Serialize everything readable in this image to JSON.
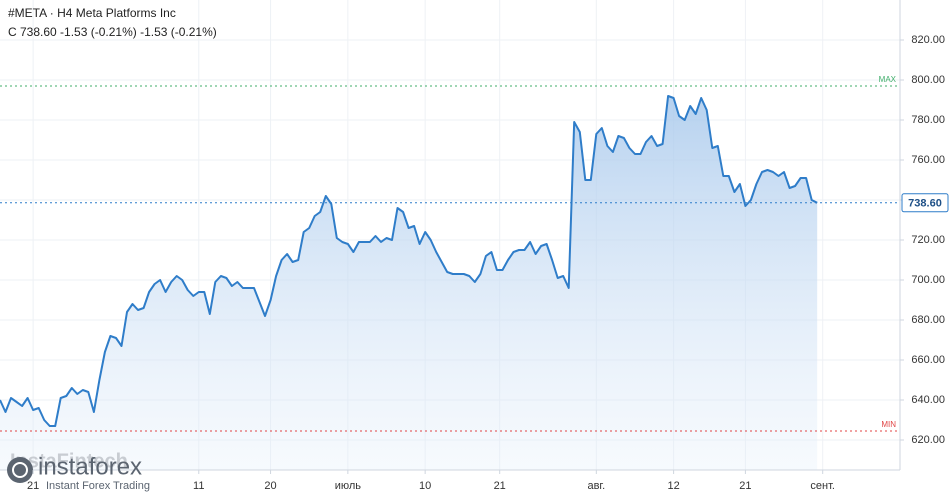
{
  "chart_data": {
    "type": "area",
    "title": "#META · H4 Meta Platforms Inc",
    "subtitle": "C 738.60 -1.53 (-0.21%) -1.53 (-0.21%)",
    "watermark": "InstaFintech",
    "brand": "instaforex",
    "brand_tagline": "Instant Forex Trading",
    "color": "#2f7dc9",
    "grid": true,
    "ylim": [
      605,
      840
    ],
    "yticks": [
      {
        "value": 620,
        "label": "620.00"
      },
      {
        "value": 640,
        "label": "640.00"
      },
      {
        "value": 660,
        "label": "660.00"
      },
      {
        "value": 680,
        "label": "680.00"
      },
      {
        "value": 700,
        "label": "700.00"
      },
      {
        "value": 720,
        "label": "720.00"
      },
      {
        "value": 740,
        "label": "740.00"
      },
      {
        "value": 760,
        "label": "760.00"
      },
      {
        "value": 780,
        "label": "780.00"
      },
      {
        "value": 800,
        "label": "800.00"
      },
      {
        "value": 820,
        "label": "820.00"
      }
    ],
    "xlim": [
      0,
      163
    ],
    "xticks": [
      {
        "value": 6,
        "label": "21"
      },
      {
        "value": 36,
        "label": "11"
      },
      {
        "value": 49,
        "label": "20"
      },
      {
        "value": 63,
        "label": "июль"
      },
      {
        "value": 77,
        "label": "10"
      },
      {
        "value": 90.5,
        "label": "21"
      },
      {
        "value": 108,
        "label": "авг."
      },
      {
        "value": 122,
        "label": "12"
      },
      {
        "value": 135,
        "label": "21"
      },
      {
        "value": 149,
        "label": "сент."
      }
    ],
    "max_line": {
      "value": 797,
      "label": "MAX"
    },
    "min_line": {
      "value": 624.5,
      "label": "MIN"
    },
    "last_price": {
      "value": 738.6,
      "label": "738.60"
    },
    "values": [
      640,
      634,
      641,
      639,
      637,
      641,
      635,
      636,
      630,
      627,
      627,
      641,
      642,
      646,
      643,
      645,
      644,
      634,
      650,
      664,
      672,
      671,
      667,
      684,
      688,
      685,
      686,
      694,
      698,
      700,
      694,
      699,
      702,
      700,
      695,
      692,
      694,
      694,
      683,
      699,
      702,
      701,
      697,
      699,
      696,
      696,
      696,
      689,
      682,
      690,
      702,
      710,
      713,
      709,
      710,
      724,
      726,
      732,
      734,
      742,
      738,
      721,
      719,
      718,
      714,
      719,
      719,
      719,
      722,
      719,
      721,
      720,
      736,
      734,
      726,
      727,
      718,
      724,
      720,
      714,
      709,
      704,
      703,
      703,
      703,
      702,
      699,
      703,
      712,
      714,
      705,
      705,
      710,
      714,
      715,
      715,
      719,
      713,
      717,
      718,
      710,
      701,
      702,
      696,
      779,
      774,
      750,
      750,
      773,
      776,
      767,
      764,
      772,
      771,
      766,
      763,
      763,
      769,
      772,
      767,
      768,
      792,
      791,
      782,
      780,
      787,
      783,
      791,
      785,
      766,
      767,
      752,
      752,
      744,
      748,
      737,
      740,
      748,
      754,
      755,
      754,
      752,
      754,
      746,
      747,
      751,
      751,
      740,
      738.6
    ]
  }
}
